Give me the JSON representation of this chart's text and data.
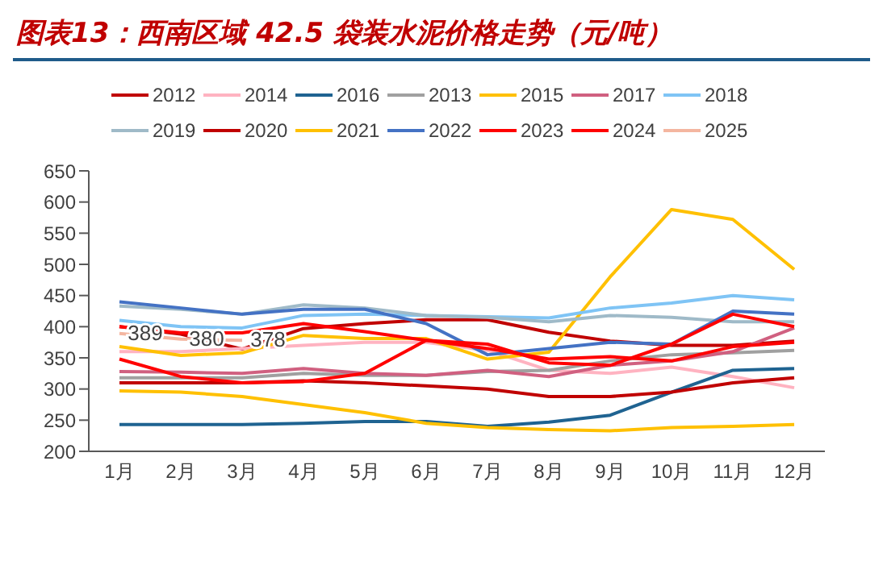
{
  "chart_data": {
    "type": "line",
    "title": "图表13：西南区域 42.5 袋装水泥价格走势（元/吨）",
    "categories": [
      "1月",
      "2月",
      "3月",
      "4月",
      "5月",
      "6月",
      "7月",
      "8月",
      "9月",
      "10月",
      "11月",
      "12月"
    ],
    "ylim": [
      200,
      650
    ],
    "yticks": [
      200,
      250,
      300,
      350,
      400,
      450,
      500,
      550,
      600,
      650
    ],
    "grid": false,
    "legend": "top",
    "marker": "none",
    "line_style": "solid",
    "series": [
      {
        "name": "2012",
        "color": "#c00000",
        "values": [
          400,
          388,
          364,
          397,
          405,
          411,
          411,
          391,
          377,
          370,
          370,
          377
        ]
      },
      {
        "name": "2014",
        "color": "#ffb3c1",
        "values": [
          360,
          360,
          365,
          370,
          375,
          375,
          362,
          330,
          325,
          335,
          320,
          302
        ]
      },
      {
        "name": "2016",
        "color": "#1f6391",
        "values": [
          243,
          243,
          243,
          245,
          248,
          248,
          240,
          247,
          258,
          295,
          330,
          333
        ]
      },
      {
        "name": "2013",
        "color": "#a0a0a0",
        "values": [
          318,
          318,
          318,
          325,
          322,
          322,
          328,
          330,
          345,
          355,
          358,
          362
        ]
      },
      {
        "name": "2015",
        "color": "#ffc000",
        "values": [
          368,
          354,
          358,
          386,
          381,
          381,
          348,
          359,
          480,
          588,
          572,
          492
        ]
      },
      {
        "name": "2017",
        "color": "#d06080",
        "values": [
          328,
          327,
          325,
          333,
          325,
          322,
          330,
          320,
          338,
          345,
          360,
          398
        ]
      },
      {
        "name": "2018",
        "color": "#7fc4f5",
        "values": [
          410,
          400,
          398,
          418,
          420,
          418,
          416,
          414,
          430,
          438,
          450,
          443
        ]
      },
      {
        "name": "2019",
        "color": "#9fbac8",
        "values": [
          433,
          428,
          420,
          435,
          430,
          418,
          415,
          408,
          418,
          415,
          408,
          408
        ]
      },
      {
        "name": "2020",
        "color": "#c00000",
        "values": [
          310,
          310,
          310,
          313,
          310,
          305,
          300,
          288,
          288,
          295,
          310,
          318
        ]
      },
      {
        "name": "2021",
        "color": "#ffc000",
        "values": [
          297,
          295,
          288,
          275,
          262,
          245,
          238,
          235,
          233,
          238,
          240,
          243
        ]
      },
      {
        "name": "2022",
        "color": "#4472c4",
        "values": [
          440,
          430,
          420,
          428,
          428,
          405,
          355,
          365,
          375,
          372,
          425,
          420
        ]
      },
      {
        "name": "2023",
        "color": "#ff0000",
        "values": [
          400,
          390,
          390,
          405,
          392,
          378,
          372,
          342,
          338,
          372,
          420,
          400
        ]
      },
      {
        "name": "2024",
        "color": "#ff0000",
        "values": [
          348,
          320,
          310,
          312,
          325,
          378,
          365,
          348,
          352,
          345,
          368,
          375
        ]
      },
      {
        "name": "2025",
        "color": "#f4b6a0",
        "values": [
          389,
          380,
          378,
          null,
          null,
          null,
          null,
          null,
          null,
          null,
          null,
          null
        ],
        "value_labels": [
          "389",
          "380",
          "378",
          null,
          null,
          null,
          null,
          null,
          null,
          null,
          null,
          null
        ]
      }
    ]
  }
}
